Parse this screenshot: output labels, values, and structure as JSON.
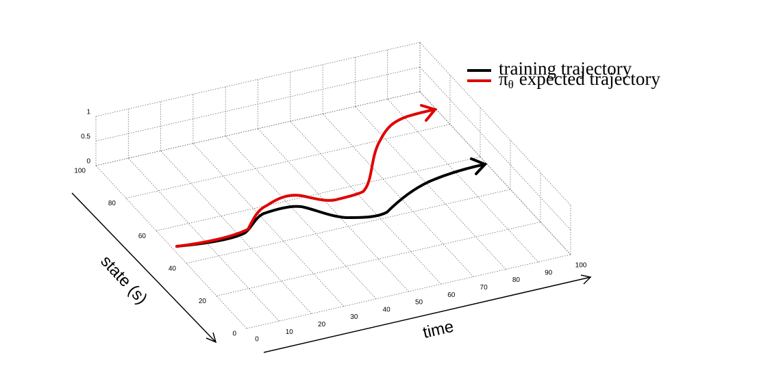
{
  "axes": {
    "x_label": "time",
    "y_label": "state (s)",
    "xticks": [
      0,
      10,
      20,
      30,
      40,
      50,
      60,
      70,
      80,
      90,
      100
    ],
    "yticks": [
      0,
      20,
      40,
      60,
      80,
      100
    ],
    "zticks": [
      0,
      0.5,
      1
    ]
  },
  "legend": {
    "entries": [
      {
        "text": "training trajectory"
      },
      {
        "symbol": "π",
        "subscript": "θ",
        "text": "expected trajectory"
      }
    ]
  }
}
